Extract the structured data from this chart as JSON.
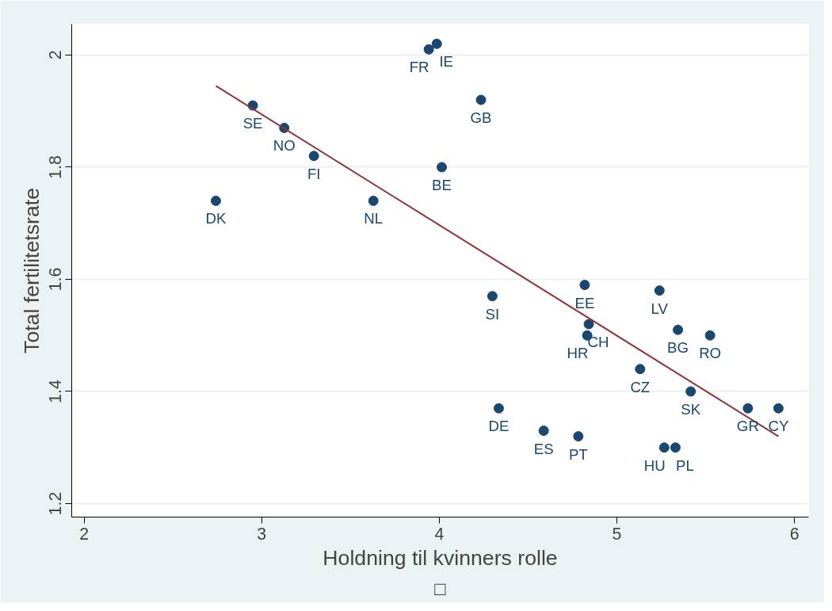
{
  "chart_data": {
    "type": "scatter",
    "xlabel": "Holdning til kvinners rolle",
    "ylabel": "Total fertilitetsrate",
    "xlim": [
      1.93,
      6.08
    ],
    "ylim": [
      1.176,
      2.055
    ],
    "xticks": [
      2,
      3,
      4,
      5,
      6
    ],
    "yticks": [
      1.2,
      1.4,
      1.6,
      1.8,
      2
    ],
    "grid": "y",
    "marker": "circle",
    "series": [
      {
        "color": "#1a476f",
        "x": [
          2.742,
          2.95,
          3.127,
          3.294,
          3.629,
          3.941,
          3.986,
          4.014,
          4.235,
          4.299,
          4.335,
          4.588,
          4.783,
          4.819,
          4.842,
          4.833,
          5.131,
          5.24,
          5.267,
          5.33,
          5.344,
          5.416,
          5.525,
          5.738,
          5.91
        ],
        "values": [
          1.74,
          1.91,
          1.87,
          1.82,
          1.74,
          2.01,
          2.02,
          1.8,
          1.92,
          1.57,
          1.37,
          1.33,
          1.32,
          1.59,
          1.52,
          1.5,
          1.44,
          1.58,
          1.3,
          1.3,
          1.51,
          1.4,
          1.5,
          1.37,
          1.37
        ]
      },
      {
        "type": "line",
        "marker": "none",
        "color": "#90353b",
        "x": [
          2.742,
          5.91
        ],
        "values": [
          1.945,
          1.32
        ]
      }
    ],
    "annotations": [
      {
        "text": "DK",
        "x": 2.742,
        "y": 1.74
      },
      {
        "text": "SE",
        "x": 2.95,
        "y": 1.91
      },
      {
        "text": "NO",
        "x": 3.127,
        "y": 1.87
      },
      {
        "text": "FI",
        "x": 3.294,
        "y": 1.82
      },
      {
        "text": "NL",
        "x": 3.629,
        "y": 1.74
      },
      {
        "text": "FR",
        "x": 3.941,
        "y": 2.01
      },
      {
        "text": "IE",
        "x": 3.986,
        "y": 2.02
      },
      {
        "text": "BE",
        "x": 4.014,
        "y": 1.8
      },
      {
        "text": "GB",
        "x": 4.235,
        "y": 1.92
      },
      {
        "text": "SI",
        "x": 4.299,
        "y": 1.57
      },
      {
        "text": "DE",
        "x": 4.335,
        "y": 1.37
      },
      {
        "text": "ES",
        "x": 4.588,
        "y": 1.33
      },
      {
        "text": "PT",
        "x": 4.783,
        "y": 1.32
      },
      {
        "text": "EE",
        "x": 4.819,
        "y": 1.59
      },
      {
        "text": "CH",
        "x": 4.842,
        "y": 1.52
      },
      {
        "text": "HR",
        "x": 4.833,
        "y": 1.5
      },
      {
        "text": "CZ",
        "x": 5.131,
        "y": 1.44
      },
      {
        "text": "LV",
        "x": 5.24,
        "y": 1.58
      },
      {
        "text": "HU",
        "x": 5.267,
        "y": 1.3
      },
      {
        "text": "PL",
        "x": 5.33,
        "y": 1.3
      },
      {
        "text": "BG",
        "x": 5.344,
        "y": 1.51
      },
      {
        "text": "SK",
        "x": 5.416,
        "y": 1.4
      },
      {
        "text": "RO",
        "x": 5.525,
        "y": 1.5
      },
      {
        "text": "GR",
        "x": 5.738,
        "y": 1.37
      },
      {
        "text": "CY",
        "x": 5.91,
        "y": 1.37
      },
      "□"
    ]
  }
}
